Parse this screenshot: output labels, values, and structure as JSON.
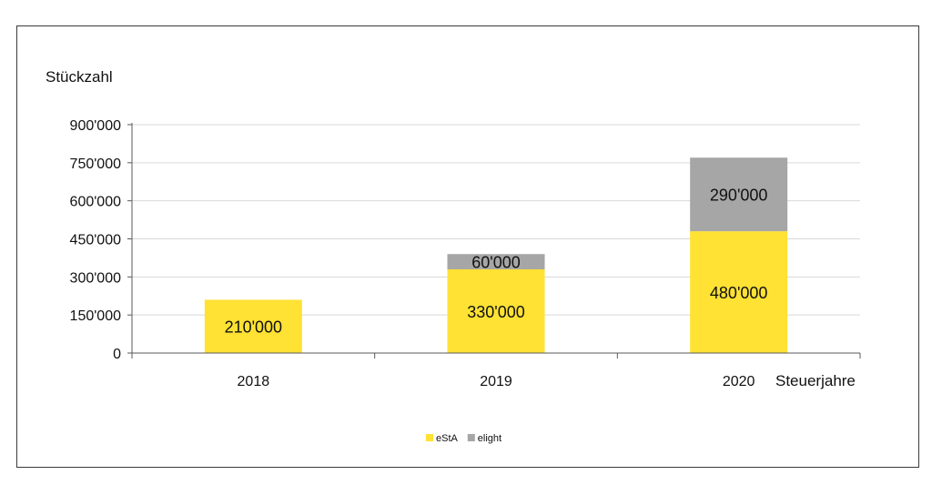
{
  "chart_data": {
    "type": "bar",
    "stacked": true,
    "ylabel": "Stückzahl",
    "xlabel": "Steuerjahre",
    "categories": [
      "2018",
      "2019",
      "2020"
    ],
    "ylim": [
      0,
      900000
    ],
    "yticks": [
      "0",
      "150'000",
      "300'000",
      "450'000",
      "600'000",
      "750'000",
      "900'000"
    ],
    "ytick_values": [
      0,
      150000,
      300000,
      450000,
      600000,
      750000,
      900000
    ],
    "grid": true,
    "legend_position": "bottom",
    "series": [
      {
        "name": "eStA",
        "color": "#FFE234",
        "values": [
          210000,
          330000,
          480000
        ],
        "labels": [
          "210'000",
          "330'000",
          "480'000"
        ]
      },
      {
        "name": "elight",
        "color": "#A6A6A6",
        "values": [
          0,
          60000,
          290000
        ],
        "labels": [
          "",
          "60'000",
          "290'000"
        ]
      }
    ]
  }
}
